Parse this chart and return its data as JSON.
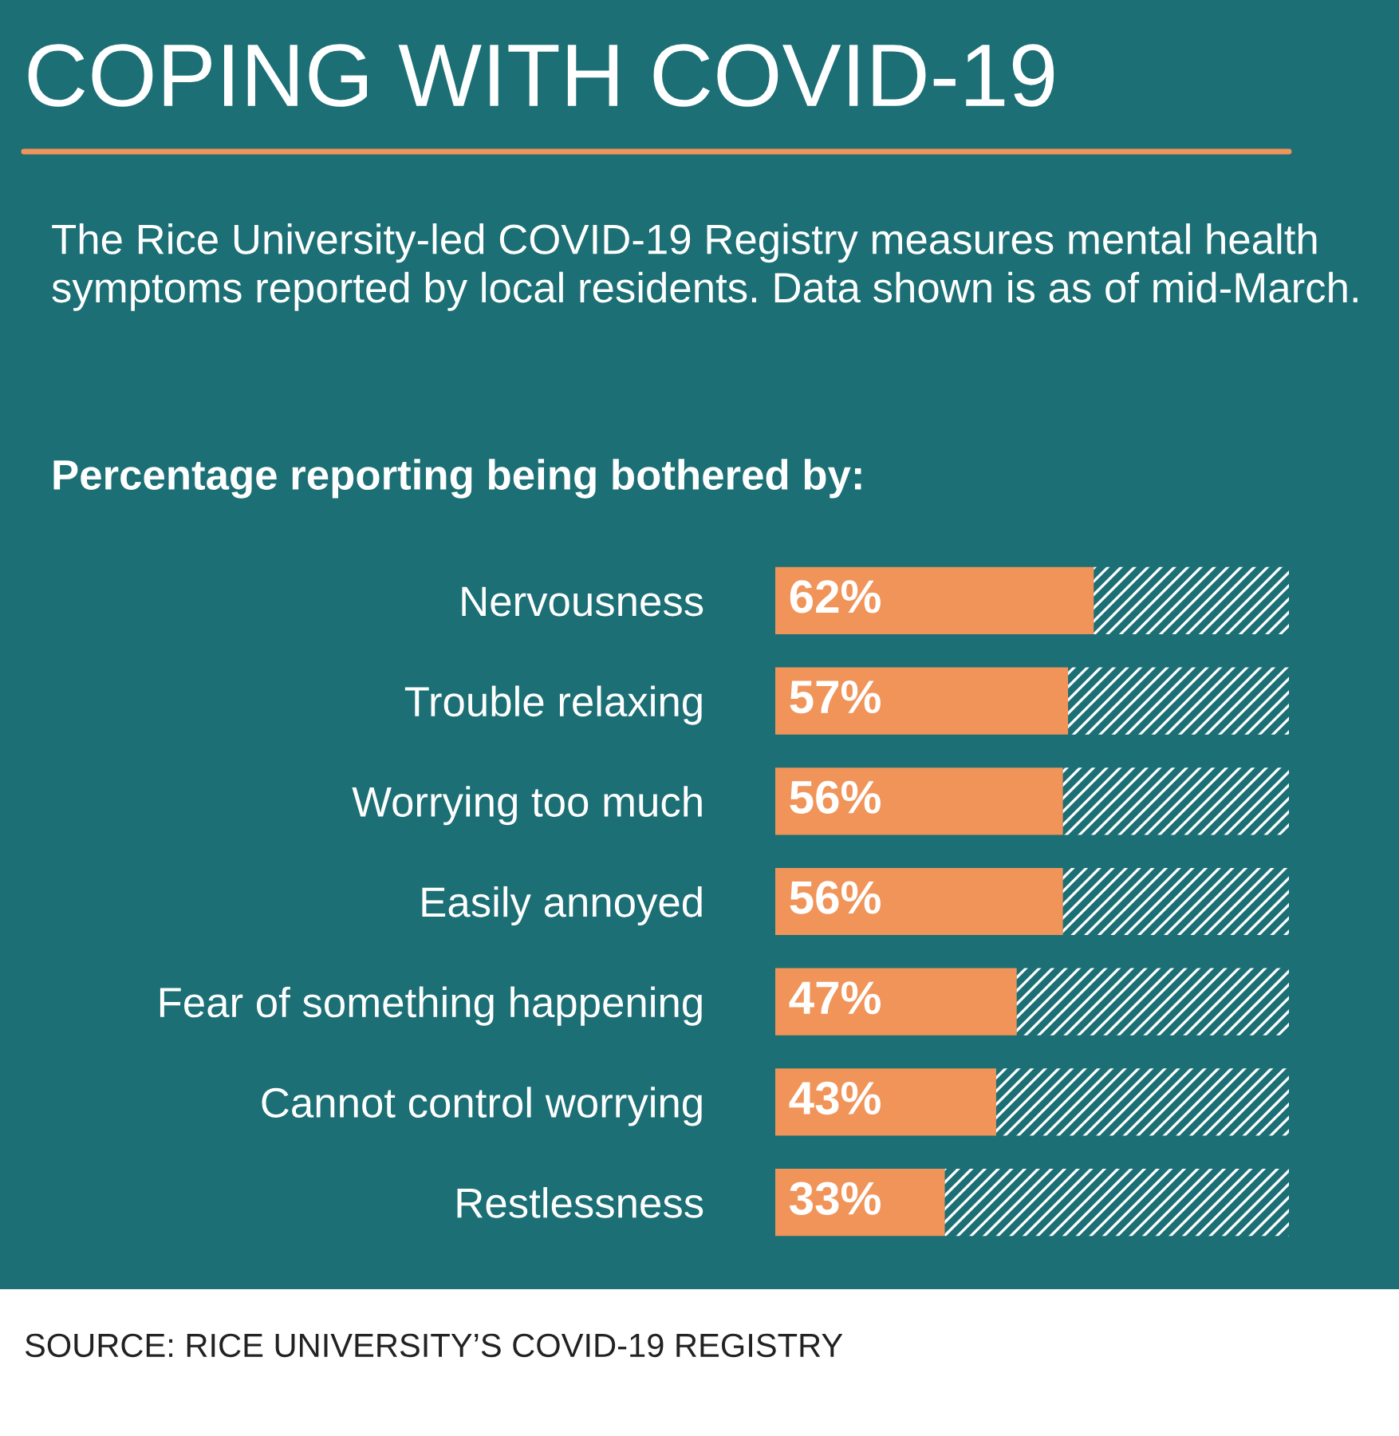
{
  "chart_data": {
    "type": "bar",
    "orientation": "horizontal",
    "stacked": true,
    "title": "COPING WITH COVID-19",
    "subtitle": "The Rice University-led COVID-19 Registry measures mental health symptoms reported by local residents. Data shown is as of mid-March.",
    "categories": [
      "Nervousness",
      "Trouble relaxing",
      "Worrying too much",
      "Easily annoyed",
      "Fear of something happening",
      "Cannot control worrying",
      "Restlessness"
    ],
    "series": [
      {
        "color": "#f19459",
        "values": [
          62,
          57,
          56,
          56,
          47,
          43,
          33
        ],
        "value_labels": [
          "62%",
          "57%",
          "56%",
          "56%",
          "47%",
          "43%",
          "33%"
        ]
      },
      {
        "color": "#ffffff",
        "values": [
          38,
          43,
          44,
          44,
          53,
          57,
          67
        ]
      }
    ],
    "xlim": [
      0,
      100
    ],
    "tick_labels": "y",
    "grid": false,
    "legend": false,
    "annotations": [
      "Percentage reporting being bothered by:",
      "SOURCE: RICE UNIVERSITY’S COVID-19 REGISTRY"
    ]
  }
}
